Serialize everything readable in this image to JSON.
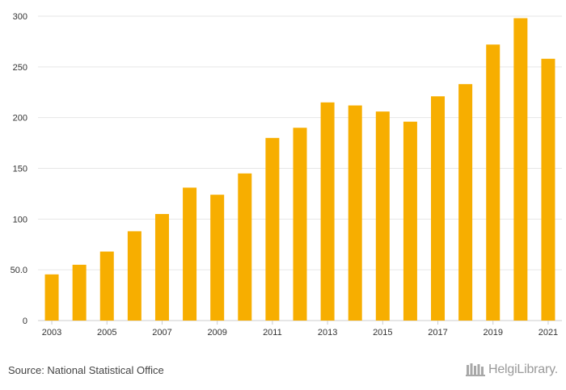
{
  "chart_data": {
    "type": "bar",
    "categories": [
      "2003",
      "2004",
      "2005",
      "2006",
      "2007",
      "2008",
      "2009",
      "2010",
      "2011",
      "2012",
      "2013",
      "2014",
      "2015",
      "2016",
      "2017",
      "2018",
      "2019",
      "2020",
      "2021"
    ],
    "values": [
      45.5,
      55,
      68,
      88,
      105,
      131,
      124,
      145,
      180,
      190,
      215,
      212,
      206,
      196,
      221,
      233,
      272,
      298,
      258
    ],
    "x_tick_labels": [
      "2003",
      "",
      "2005",
      "",
      "2007",
      "",
      "2009",
      "",
      "2011",
      "",
      "2013",
      "",
      "2015",
      "",
      "2017",
      "",
      "2019",
      "",
      "2021"
    ],
    "y_ticks": [
      0,
      50,
      100,
      150,
      200,
      250,
      300
    ],
    "y_tick_labels": [
      "0",
      "50.0",
      "100",
      "150",
      "200",
      "250",
      "300"
    ],
    "ylim": [
      0,
      300
    ],
    "title": "",
    "xlabel": "",
    "ylabel": "",
    "grid": true,
    "bar_color": "#F7AE00",
    "grid_color": "#E6E6E6"
  },
  "footer": {
    "source": "Source: National Statistical Office",
    "brand": "HelgiLibrary."
  }
}
